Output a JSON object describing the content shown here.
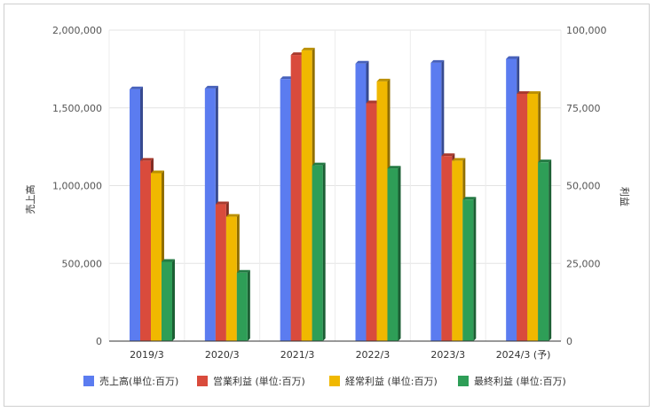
{
  "chart_data": {
    "type": "bar",
    "categories": [
      "2019/3",
      "2020/3",
      "2021/3",
      "2022/3",
      "2023/3",
      "2024/3 (予)"
    ],
    "series": [
      {
        "name": "売上高(単位:百万)",
        "axis": "left",
        "color": "#5b7cf0",
        "values": [
          1620000,
          1625000,
          1685000,
          1785000,
          1790000,
          1815000
        ]
      },
      {
        "name": "営業利益 (単位:百万)",
        "axis": "right",
        "color": "#d94b3c",
        "values": [
          58000,
          44000,
          92000,
          76500,
          59500,
          79500
        ]
      },
      {
        "name": "経常利益 (単位:百万)",
        "axis": "right",
        "color": "#f0b800",
        "values": [
          54000,
          40000,
          93500,
          83500,
          58000,
          79500
        ]
      },
      {
        "name": "最終利益 (単位:百万)",
        "axis": "right",
        "color": "#2e9e57",
        "values": [
          25500,
          22000,
          56500,
          55500,
          45500,
          57500
        ]
      }
    ],
    "ylabel_left": "売上高",
    "ylabel_right": "利益",
    "ylim_left": [
      0,
      2000000
    ],
    "ylim_right": [
      0,
      100000
    ],
    "yticks_left": [
      "0",
      "500,000",
      "1,000,000",
      "1,500,000",
      "2,000,000"
    ],
    "yticks_right": [
      "0",
      "25,000",
      "50,000",
      "75,000",
      "100,000"
    ],
    "grid": true,
    "legend": "bottom"
  }
}
